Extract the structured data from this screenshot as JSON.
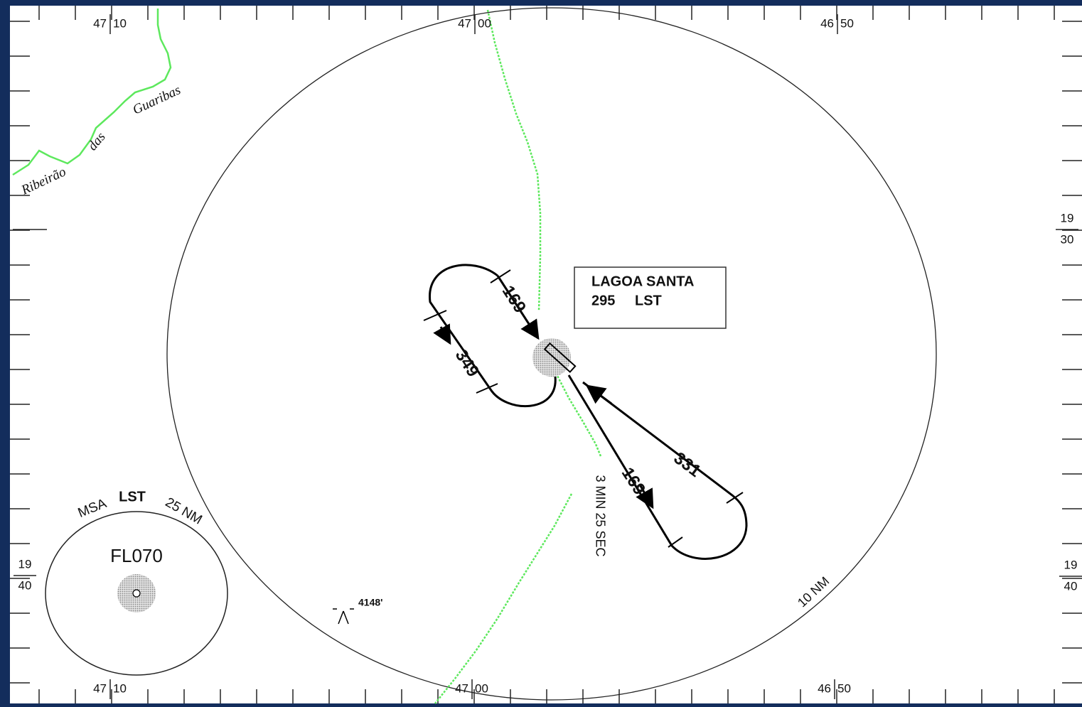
{
  "graticule": {
    "top": [
      {
        "deg": "47",
        "min": "10"
      },
      {
        "deg": "47",
        "min": "00"
      },
      {
        "deg": "46",
        "min": "50"
      }
    ],
    "bottom": [
      {
        "deg": "47",
        "min": "10"
      },
      {
        "deg": "47",
        "min": "00"
      },
      {
        "deg": "46",
        "min": "50"
      }
    ],
    "left": [
      {
        "deg": "19",
        "min": "40"
      }
    ],
    "right": [
      {
        "deg": "19",
        "min": "30"
      },
      {
        "deg": "19",
        "min": "40"
      }
    ]
  },
  "river": {
    "words": [
      "Ribeirão",
      "das",
      "Guaribas"
    ]
  },
  "navaid": {
    "name": "LAGOA SANTA",
    "frequency": "295",
    "ident": "LST"
  },
  "holding": {
    "inbound": "169",
    "outbound": "349"
  },
  "procedure": {
    "outbound": "169",
    "inbound": "331",
    "timing": "3 MIN 25 SEC"
  },
  "range_ring": "10 NM",
  "msa": {
    "label": "MSA",
    "ident": "LST",
    "radius": "25 NM",
    "altitude": "FL070"
  },
  "spot_elevation": "4148'"
}
